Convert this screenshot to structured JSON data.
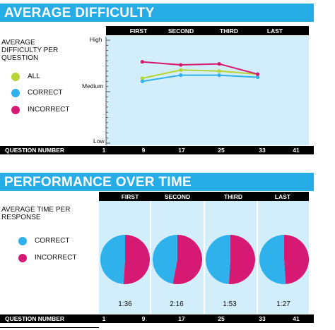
{
  "colors": {
    "accent": "#27ade5",
    "all": "#b6d433",
    "correct": "#2fb1ec",
    "incorrect": "#d61a73",
    "plot_bg": "#d3eefb"
  },
  "difficulty": {
    "title": "AVERAGE DIFFICULTY",
    "side_label": [
      "AVERAGE",
      "DIFFICULTY PER",
      "QUESTION"
    ],
    "legend": {
      "all": "ALL",
      "correct": "CORRECT",
      "incorrect": "INCORRECT"
    },
    "segments": [
      "FIRST",
      "SECOND",
      "THIRD",
      "LAST"
    ],
    "y_labels": {
      "high": "High",
      "medium": "Medium",
      "low": "Low"
    },
    "footer_label": "QUESTION NUMBER",
    "ticks": [
      "1",
      "9",
      "17",
      "25",
      "33",
      "41"
    ]
  },
  "performance": {
    "title": "PERFORMANCE OVER TIME",
    "side_label": [
      "AVERAGE TIME PER",
      "RESPONSE"
    ],
    "legend": {
      "correct": "CORRECT",
      "incorrect": "INCORRECT"
    },
    "segments": [
      "FIRST",
      "SECOND",
      "THIRD",
      "LAST"
    ],
    "times": [
      "1:36",
      "2:16",
      "1:53",
      "1:27"
    ],
    "footer_label": "QUESTION NUMBER",
    "ticks": [
      "1",
      "9",
      "17",
      "25",
      "33",
      "41"
    ]
  },
  "chart_data": [
    {
      "type": "line",
      "title": "AVERAGE DIFFICULTY",
      "xlabel": "QUESTION NUMBER",
      "ylabel": "AVERAGE DIFFICULTY PER QUESTION",
      "xlim": [
        1,
        41
      ],
      "ylim": [
        0,
        100
      ],
      "y_tick_labels": [
        "Low",
        "Medium",
        "High"
      ],
      "y_tick_values": [
        0,
        50,
        100
      ],
      "x": [
        9,
        17,
        25,
        33
      ],
      "series": [
        {
          "name": "ALL",
          "values": [
            63,
            71,
            70,
            67
          ]
        },
        {
          "name": "CORRECT",
          "values": [
            60,
            66,
            66,
            64
          ]
        },
        {
          "name": "INCORRECT",
          "values": [
            79,
            76,
            77,
            67
          ]
        }
      ]
    },
    {
      "type": "pie",
      "title": "PERFORMANCE OVER TIME",
      "categories": [
        "FIRST",
        "SECOND",
        "THIRD",
        "LAST"
      ],
      "series": [
        {
          "name": "CORRECT",
          "values": [
            49,
            47,
            49,
            51
          ]
        },
        {
          "name": "INCORRECT",
          "values": [
            51,
            53,
            51,
            49
          ]
        }
      ],
      "time_labels": [
        "1:36",
        "2:16",
        "1:53",
        "1:27"
      ]
    }
  ]
}
